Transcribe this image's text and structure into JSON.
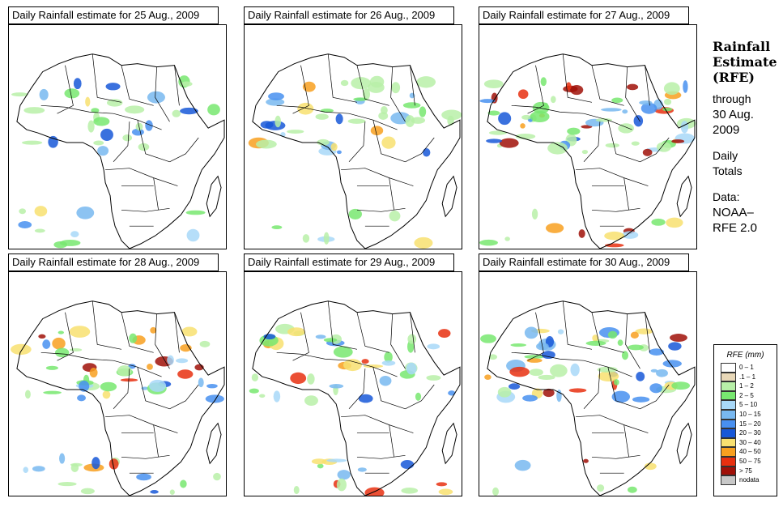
{
  "panels": [
    {
      "title": "Daily Rainfall estimate for  25 Aug., 2009",
      "intensity": 0.55
    },
    {
      "title": "Daily Rainfall estimate for  26 Aug., 2009",
      "intensity": 0.7
    },
    {
      "title": "Daily Rainfall estimate for  27 Aug., 2009",
      "intensity": 1.0
    },
    {
      "title": "Daily Rainfall estimate for  28 Aug., 2009",
      "intensity": 0.85
    },
    {
      "title": "Daily Rainfall estimate for  29 Aug., 2009",
      "intensity": 0.75
    },
    {
      "title": "Daily Rainfall estimate for  30 Aug., 2009",
      "intensity": 0.9
    }
  ],
  "side": {
    "heading": [
      "Rainfall",
      "Estimate",
      "(RFE)"
    ],
    "through": "through",
    "date_line1": "30 Aug.",
    "date_line2": "2009",
    "daily": "Daily",
    "totals": "Totals",
    "data_label": "Data:",
    "source1": "NOAA–",
    "source2": "RFE 2.0"
  },
  "legend": {
    "title": "RFE (mm)",
    "entries": [
      {
        "label": "0 – 1",
        "color": "#ffffff"
      },
      {
        "label": ".1 – 1",
        "color": "#e8d8b8"
      },
      {
        "label": "1 – 2",
        "color": "#b8f0a8"
      },
      {
        "label": "2 – 5",
        "color": "#78e870"
      },
      {
        "label": "5 – 10",
        "color": "#a8d8f8"
      },
      {
        "label": "10 – 15",
        "color": "#78b8f0"
      },
      {
        "label": "15 – 20",
        "color": "#4890f0"
      },
      {
        "label": "20 – 30",
        "color": "#1858d8"
      },
      {
        "label": "30 – 40",
        "color": "#f8e070"
      },
      {
        "label": "40 – 50",
        "color": "#f8a020"
      },
      {
        "label": "50 – 75",
        "color": "#e83010"
      },
      {
        "label": "> 75",
        "color": "#a01008"
      },
      {
        "label": "nodata",
        "color": "#c8c8c8"
      }
    ]
  }
}
